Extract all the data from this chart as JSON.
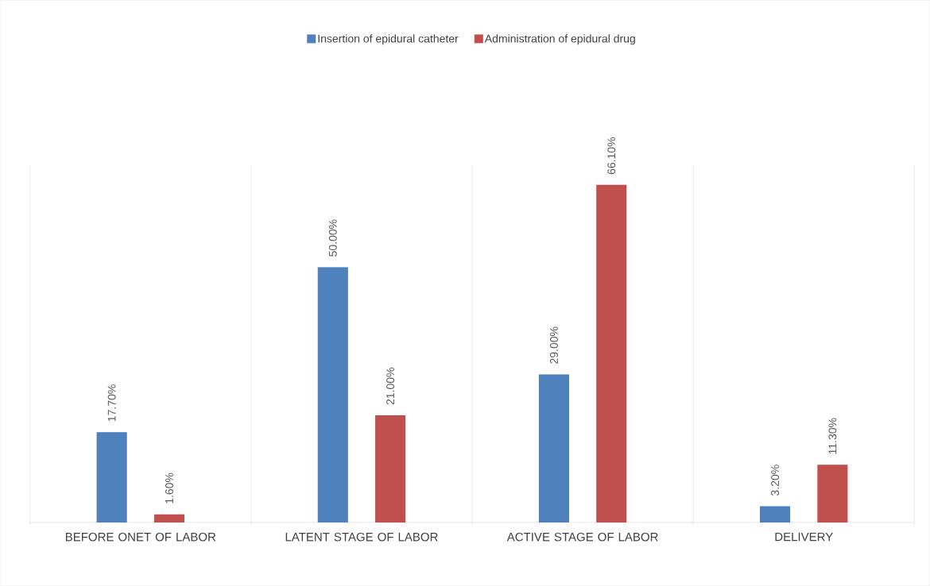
{
  "chart_data": {
    "type": "bar",
    "categories": [
      "BEFORE ONET OF LABOR",
      "LATENT STAGE OF LABOR",
      "ACTIVE STAGE OF LABOR",
      "DELIVERY"
    ],
    "series": [
      {
        "name": "Insertion of epidural catheter",
        "color": "#4f81bd",
        "values": [
          17.7,
          50.0,
          29.0,
          3.2
        ],
        "value_labels": [
          "17.70%",
          "50.00%",
          "29.00%",
          "3.20%"
        ]
      },
      {
        "name": "Administration of epidural drug",
        "color": "#c0504d",
        "values": [
          1.6,
          21.0,
          66.1,
          11.3
        ],
        "value_labels": [
          "1.60%",
          "21.00%",
          "66.10%",
          "11.30%"
        ]
      }
    ],
    "grid": "x",
    "legend": "top"
  }
}
